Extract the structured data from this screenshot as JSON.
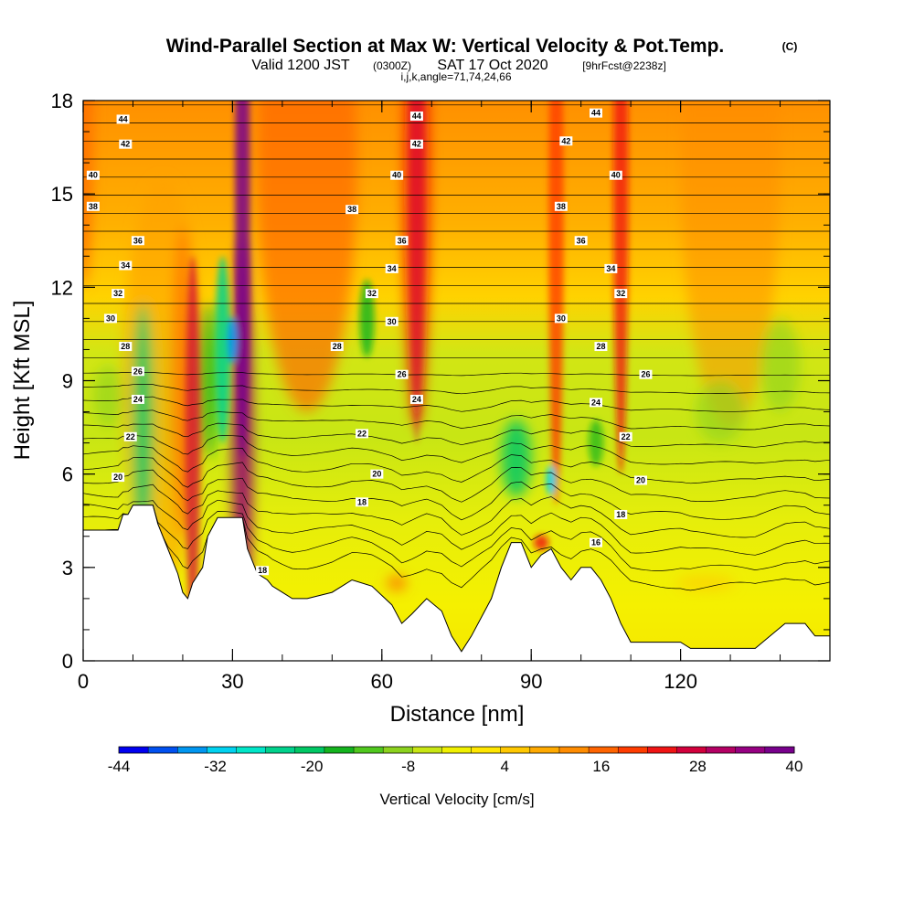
{
  "title": "Wind-Parallel Section at Max W: Vertical Velocity & Pot.Temp.",
  "title_mark": "(C)",
  "subtitle_valid": "Valid 1200 JST",
  "subtitle_utc": "(0300Z)",
  "subtitle_date": "SAT 17 Oct 2020",
  "subtitle_fcst": "[9hrFcst@2238z]",
  "subtitle_params": "i,j,k,angle=71,74,24,66",
  "chart_data": {
    "type": "heatmap",
    "xlabel": "Distance [nm]",
    "ylabel": "Height [Kft MSL]",
    "xlim": [
      0,
      150
    ],
    "ylim": [
      0,
      18
    ],
    "x_ticks": [
      0,
      30,
      60,
      90,
      120
    ],
    "y_ticks": [
      0,
      3,
      6,
      9,
      12,
      15,
      18
    ],
    "colorbar": {
      "title": "Vertical Velocity [cm/s]",
      "tick_labels": [
        "-44",
        "-32",
        "-20",
        "-8",
        "4",
        "16",
        "28",
        "40"
      ],
      "tick_values": [
        -44,
        -32,
        -20,
        -8,
        4,
        16,
        28,
        40
      ],
      "colors": [
        "#0000f0",
        "#0050f0",
        "#0096f0",
        "#00d2f0",
        "#00e6c8",
        "#00d28c",
        "#00c864",
        "#14b41e",
        "#50c81e",
        "#8cd21e",
        "#c8e614",
        "#f0f000",
        "#ffe600",
        "#ffc800",
        "#ffaa00",
        "#ff8c00",
        "#ff6400",
        "#ff3c00",
        "#f01414",
        "#d2003c",
        "#b40064",
        "#960082",
        "#78008c"
      ]
    },
    "contour_field": "Potential Temperature",
    "contour_labels": [
      {
        "value": "44",
        "x": 8,
        "y": 17.4
      },
      {
        "value": "42",
        "x": 8.5,
        "y": 16.6
      },
      {
        "value": "40",
        "x": 2,
        "y": 15.6
      },
      {
        "value": "38",
        "x": 2,
        "y": 14.6
      },
      {
        "value": "36",
        "x": 11,
        "y": 13.5
      },
      {
        "value": "34",
        "x": 8.5,
        "y": 12.7
      },
      {
        "value": "32",
        "x": 7,
        "y": 11.8
      },
      {
        "value": "30",
        "x": 5.5,
        "y": 11.0
      },
      {
        "value": "28",
        "x": 8.5,
        "y": 10.1
      },
      {
        "value": "26",
        "x": 11,
        "y": 9.3
      },
      {
        "value": "24",
        "x": 11,
        "y": 8.4
      },
      {
        "value": "22",
        "x": 9.5,
        "y": 7.2
      },
      {
        "value": "20",
        "x": 7,
        "y": 5.9
      },
      {
        "value": "44",
        "x": 67,
        "y": 17.5
      },
      {
        "value": "42",
        "x": 67,
        "y": 16.6
      },
      {
        "value": "40",
        "x": 63,
        "y": 15.6
      },
      {
        "value": "38",
        "x": 54,
        "y": 14.5
      },
      {
        "value": "36",
        "x": 64,
        "y": 13.5
      },
      {
        "value": "34",
        "x": 62,
        "y": 12.6
      },
      {
        "value": "32",
        "x": 58,
        "y": 11.8
      },
      {
        "value": "30",
        "x": 62,
        "y": 10.9
      },
      {
        "value": "28",
        "x": 51,
        "y": 10.1
      },
      {
        "value": "26",
        "x": 64,
        "y": 9.2
      },
      {
        "value": "24",
        "x": 67,
        "y": 8.4
      },
      {
        "value": "22",
        "x": 56,
        "y": 7.3
      },
      {
        "value": "20",
        "x": 59,
        "y": 6.0
      },
      {
        "value": "18",
        "x": 56,
        "y": 5.1
      },
      {
        "value": "44",
        "x": 103,
        "y": 17.6
      },
      {
        "value": "42",
        "x": 97,
        "y": 16.7
      },
      {
        "value": "40",
        "x": 107,
        "y": 15.6
      },
      {
        "value": "38",
        "x": 96,
        "y": 14.6
      },
      {
        "value": "36",
        "x": 100,
        "y": 13.5
      },
      {
        "value": "34",
        "x": 106,
        "y": 12.6
      },
      {
        "value": "32",
        "x": 108,
        "y": 11.8
      },
      {
        "value": "30",
        "x": 96,
        "y": 11.0
      },
      {
        "value": "28",
        "x": 104,
        "y": 10.1
      },
      {
        "value": "26",
        "x": 113,
        "y": 9.2
      },
      {
        "value": "24",
        "x": 103,
        "y": 8.3
      },
      {
        "value": "22",
        "x": 109,
        "y": 7.2
      },
      {
        "value": "20",
        "x": 112,
        "y": 5.8
      },
      {
        "value": "18",
        "x": 108,
        "y": 4.7
      },
      {
        "value": "16",
        "x": 103,
        "y": 3.8
      },
      {
        "value": "18",
        "x": 36,
        "y": 2.9
      }
    ],
    "terrain_kft": [
      [
        0,
        4.2
      ],
      [
        7,
        4.2
      ],
      [
        8,
        4.7
      ],
      [
        9,
        4.7
      ],
      [
        10,
        5.0
      ],
      [
        14,
        5.0
      ],
      [
        15,
        4.4
      ],
      [
        17,
        3.6
      ],
      [
        19,
        2.8
      ],
      [
        20,
        2.2
      ],
      [
        21,
        2.0
      ],
      [
        22,
        2.5
      ],
      [
        24,
        3.0
      ],
      [
        25,
        4.0
      ],
      [
        27,
        4.6
      ],
      [
        32,
        4.6
      ],
      [
        33,
        3.6
      ],
      [
        35,
        2.8
      ],
      [
        37,
        2.6
      ],
      [
        38,
        2.4
      ],
      [
        40,
        2.2
      ],
      [
        42,
        2.0
      ],
      [
        45,
        2.0
      ],
      [
        50,
        2.2
      ],
      [
        54,
        2.6
      ],
      [
        58,
        2.4
      ],
      [
        62,
        1.8
      ],
      [
        64,
        1.2
      ],
      [
        66,
        1.5
      ],
      [
        69,
        2.0
      ],
      [
        72,
        1.6
      ],
      [
        74,
        0.8
      ],
      [
        76,
        0.3
      ],
      [
        78,
        0.8
      ],
      [
        82,
        2.0
      ],
      [
        84,
        3.0
      ],
      [
        86,
        3.8
      ],
      [
        88,
        3.8
      ],
      [
        90,
        3.0
      ],
      [
        92,
        3.4
      ],
      [
        94,
        3.6
      ],
      [
        96,
        3.0
      ],
      [
        98,
        2.6
      ],
      [
        100,
        3.0
      ],
      [
        102,
        3.0
      ],
      [
        104,
        2.6
      ],
      [
        106,
        2.0
      ],
      [
        108,
        1.2
      ],
      [
        110,
        0.6
      ],
      [
        115,
        0.6
      ],
      [
        120,
        0.6
      ],
      [
        122,
        0.4
      ],
      [
        130,
        0.4
      ],
      [
        135,
        0.4
      ],
      [
        138,
        0.8
      ],
      [
        141,
        1.2
      ],
      [
        145,
        1.2
      ],
      [
        147,
        0.8
      ],
      [
        150,
        0.8
      ]
    ]
  }
}
